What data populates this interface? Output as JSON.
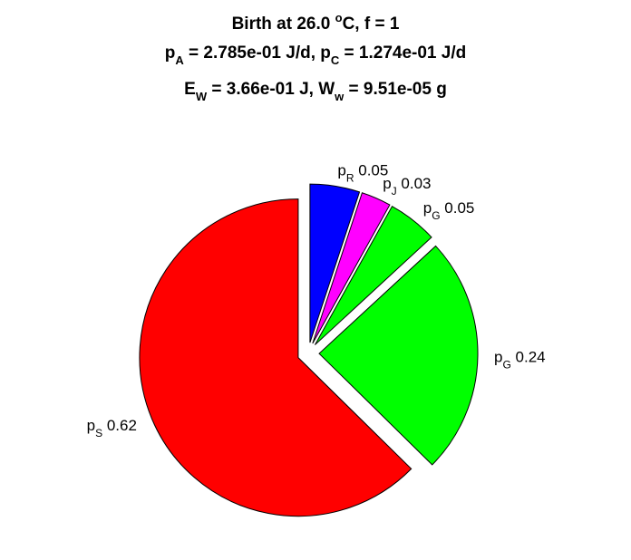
{
  "chart_data": {
    "type": "pie",
    "title_lines": [
      [
        {
          "text": "Birth at 26.0 "
        },
        {
          "text": "o",
          "sup": true
        },
        {
          "text": "C, f = 1"
        }
      ],
      [
        {
          "text": "p"
        },
        {
          "text": "A",
          "sub": true
        },
        {
          "text": " = 2.785e-01 J/d, p"
        },
        {
          "text": "C",
          "sub": true
        },
        {
          "text": " = 1.274e-01 J/d"
        }
      ],
      [
        {
          "text": "E"
        },
        {
          "text": "W",
          "sub": true
        },
        {
          "text": " = 3.66e-01 J, W"
        },
        {
          "text": "w",
          "sub": true
        },
        {
          "text": " = 9.51e-05 g"
        }
      ]
    ],
    "slices": [
      {
        "label": "p",
        "sub": "R",
        "value": 0.05,
        "value_text": "0.05",
        "color": "#0000ff",
        "exploded": true
      },
      {
        "label": "p",
        "sub": "J",
        "value": 0.03,
        "value_text": "0.03",
        "color": "#ff00ff",
        "exploded": true
      },
      {
        "label": "p",
        "sub": "G",
        "value": 0.05,
        "value_text": "0.05",
        "color": "#00ff00",
        "exploded": true
      },
      {
        "label": "p",
        "sub": "G",
        "value": 0.24,
        "value_text": "0.24",
        "color": "#00ff00",
        "exploded": true
      },
      {
        "label": "p",
        "sub": "S",
        "value": 0.62,
        "value_text": "0.62",
        "color": "#ff0000",
        "exploded": true
      }
    ],
    "start_angle_deg": 90,
    "direction": "clockwise"
  }
}
